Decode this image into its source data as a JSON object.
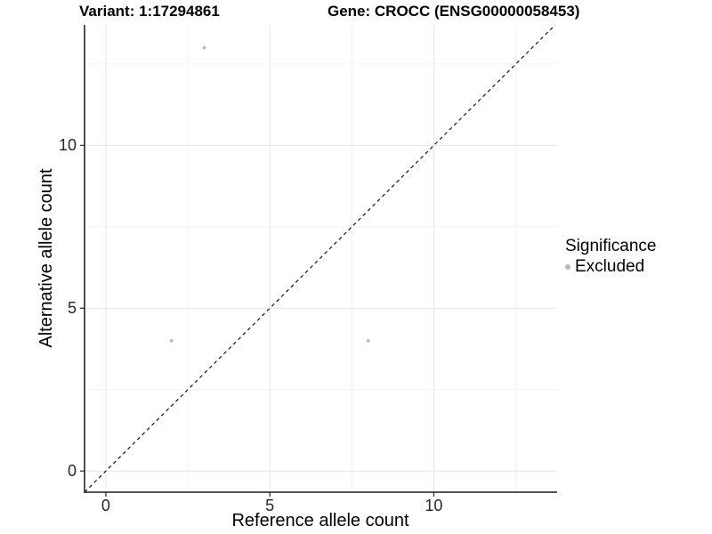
{
  "titles": {
    "variant": "Variant: 1:17294861",
    "gene": "Gene: CROCC (ENSG00000058453)"
  },
  "chart_data": {
    "type": "scatter",
    "title_left": "Variant: 1:17294861",
    "title_right": "Gene: CROCC (ENSG00000058453)",
    "xlabel": "Reference allele count",
    "ylabel": "Alternative allele count",
    "xlim": [
      -0.65,
      13.76
    ],
    "ylim": [
      -0.65,
      13.7
    ],
    "x_ticks": [
      0,
      5,
      10
    ],
    "y_ticks": [
      0,
      5,
      10
    ],
    "x_minor_ticks": [
      2.5,
      7.5,
      12.5
    ],
    "y_minor_ticks": [
      2.5,
      7.5,
      12.5
    ],
    "grid": true,
    "series": [
      {
        "name": "Excluded",
        "color": "#b9b9b9",
        "points": [
          [
            3,
            13
          ],
          [
            2,
            4
          ],
          [
            8,
            4
          ]
        ]
      }
    ],
    "abline": {
      "slope": 1,
      "intercept": 0,
      "linetype": "dashed",
      "color": "#000000"
    },
    "legend": {
      "title": "Significance",
      "position": "right",
      "items": [
        {
          "label": "Excluded",
          "color": "#b9b9b9"
        }
      ]
    }
  },
  "colors": {
    "background": "#ffffff",
    "axis_line": "#3c3c3c",
    "tick_mark": "#333333",
    "tick_label": "#262626",
    "grid_major": "#e6e6e6",
    "grid_minor": "#f2f2f2",
    "point": "#b9b9b9",
    "title_text": "#000000"
  }
}
